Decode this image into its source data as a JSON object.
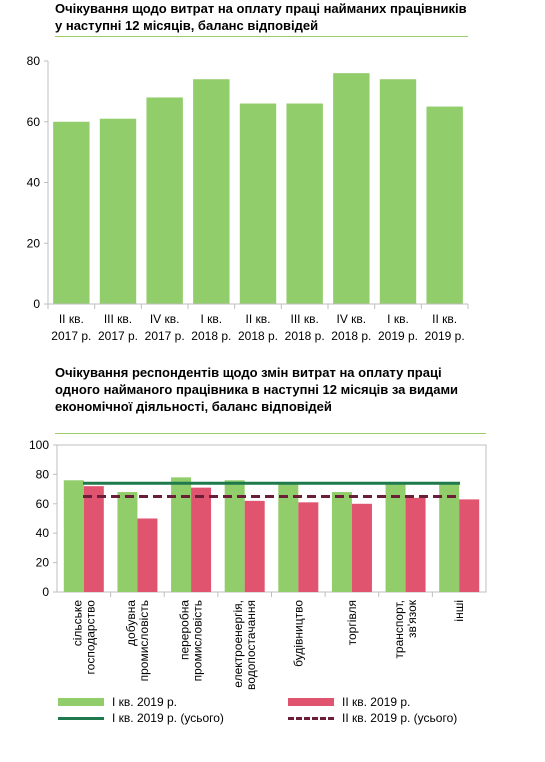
{
  "colors": {
    "green": "#92cd6b",
    "pink": "#e0546f",
    "line_green": "#1e7a4c",
    "line_maroon": "#6b1e3a",
    "axis": "#bfbfbf"
  },
  "chart_data": [
    {
      "type": "bar",
      "title": "Очікування щодо витрат на оплату праці найманих працівників у наступні 12 місяців, баланс відповідей",
      "categories": [
        [
          "II кв.",
          "2017 р."
        ],
        [
          "III кв.",
          "2017 р."
        ],
        [
          "IV кв.",
          "2017 р."
        ],
        [
          "I кв.",
          "2018 р."
        ],
        [
          "II кв.",
          "2018 р."
        ],
        [
          "III кв.",
          "2018 р."
        ],
        [
          "IV кв.",
          "2018 р."
        ],
        [
          "I кв.",
          "2019 р."
        ],
        [
          "II кв.",
          "2019 р."
        ]
      ],
      "values": [
        60,
        61,
        68,
        74,
        66,
        66,
        76,
        74,
        65
      ],
      "ylim": [
        0,
        80
      ],
      "yticks": [
        0,
        20,
        40,
        60,
        80
      ],
      "grid": false
    },
    {
      "type": "bar",
      "title": "Очікування респондентів щодо змін витрат на оплату праці одного найманого працівника в наступні 12 місяців за видами економічної діяльності, баланс відповідей",
      "categories": [
        [
          "сільське",
          "господарство"
        ],
        [
          "добувна",
          "промисловість"
        ],
        [
          "переробна",
          "промисловість"
        ],
        [
          "електроенергія,",
          "водопостачання"
        ],
        [
          "будівництво"
        ],
        [
          "торгівля"
        ],
        [
          "транспорт,",
          "зв'язок"
        ],
        [
          "інші"
        ]
      ],
      "series": [
        {
          "name": "I кв. 2019 р.",
          "values": [
            76,
            68,
            78,
            76,
            74,
            68,
            74,
            74
          ]
        },
        {
          "name": "II кв. 2019 р.",
          "values": [
            72,
            50,
            71,
            62,
            61,
            60,
            64,
            63
          ]
        }
      ],
      "reference_lines": [
        {
          "name": "I кв. 2019 р. (усього)",
          "value": 74,
          "style": "solid"
        },
        {
          "name": "II кв. 2019 р. (усього)",
          "value": 65,
          "style": "dashed"
        }
      ],
      "ylim": [
        0,
        100
      ],
      "yticks": [
        0,
        20,
        40,
        60,
        80,
        100
      ],
      "grid": false,
      "legend": "bottom"
    }
  ]
}
